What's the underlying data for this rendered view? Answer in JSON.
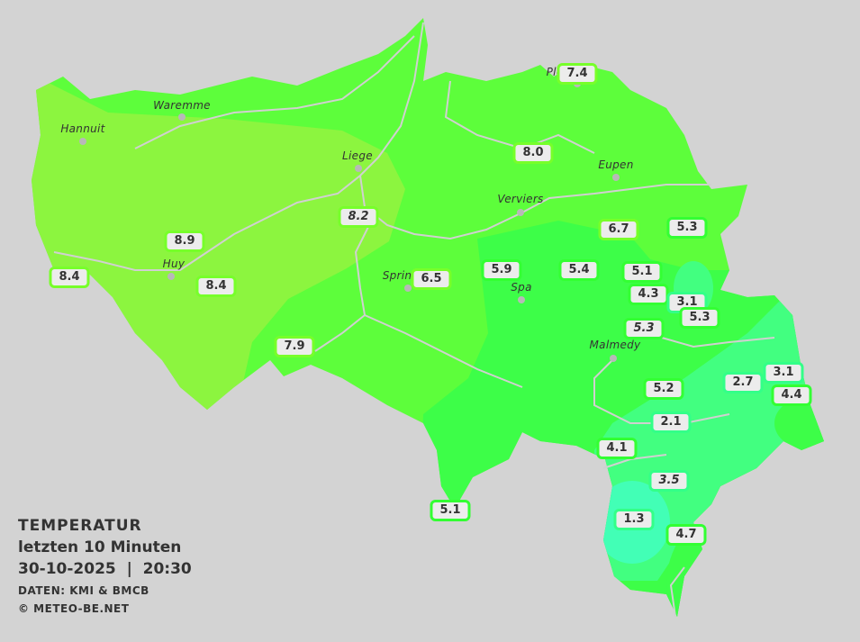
{
  "colors": {
    "background": "#d3d3d3",
    "zone_above_8": "#8cf53f",
    "zone_6_8": "#5dfe3b",
    "zone_4_6": "#3dfe48",
    "zone_2_4": "#42ff80",
    "zone_below_2": "#42ffb6",
    "border_high": "#77ff2a",
    "border_mid": "#33ff33",
    "border_low": "#33ff88",
    "rivers": "#d0d0d0"
  },
  "legend": {
    "title": "TEMPERATUR",
    "period": "letzten 10 Minuten",
    "datetime": "30-10-2025  |  20:30",
    "source": "DATEN: KMI & BMCB",
    "copyright": "© METEO-BE.NET"
  },
  "cities": [
    {
      "name": "Waremme"
    },
    {
      "name": "Hannuit"
    },
    {
      "name": "Liege"
    },
    {
      "name": "Verviers"
    },
    {
      "name": "Eupen"
    },
    {
      "name": "Huy"
    },
    {
      "name": "Sprin"
    },
    {
      "name": "Spa"
    },
    {
      "name": "Malmedy"
    },
    {
      "name": "Plo"
    }
  ],
  "stations": [
    {
      "value": "7.4",
      "italic": false
    },
    {
      "value": "8.0",
      "italic": false
    },
    {
      "value": "8.2",
      "italic": true
    },
    {
      "value": "8.9",
      "italic": false
    },
    {
      "value": "8.4",
      "italic": false
    },
    {
      "value": "8.4",
      "italic": false
    },
    {
      "value": "6.5",
      "italic": false
    },
    {
      "value": "5.9",
      "italic": false
    },
    {
      "value": "5.4",
      "italic": false
    },
    {
      "value": "5.1",
      "italic": false
    },
    {
      "value": "4.3",
      "italic": false
    },
    {
      "value": "3.1",
      "italic": false
    },
    {
      "value": "5.3",
      "italic": false
    },
    {
      "value": "5.3",
      "italic": true
    },
    {
      "value": "6.7",
      "italic": false
    },
    {
      "value": "5.3",
      "italic": false
    },
    {
      "value": "7.9",
      "italic": false
    },
    {
      "value": "5.2",
      "italic": false
    },
    {
      "value": "2.7",
      "italic": false
    },
    {
      "value": "3.1",
      "italic": false
    },
    {
      "value": "4.4",
      "italic": false
    },
    {
      "value": "2.1",
      "italic": false
    },
    {
      "value": "4.1",
      "italic": false
    },
    {
      "value": "3.5",
      "italic": true
    },
    {
      "value": "1.3",
      "italic": false
    },
    {
      "value": "4.7",
      "italic": false
    },
    {
      "value": "5.1",
      "italic": false
    }
  ]
}
